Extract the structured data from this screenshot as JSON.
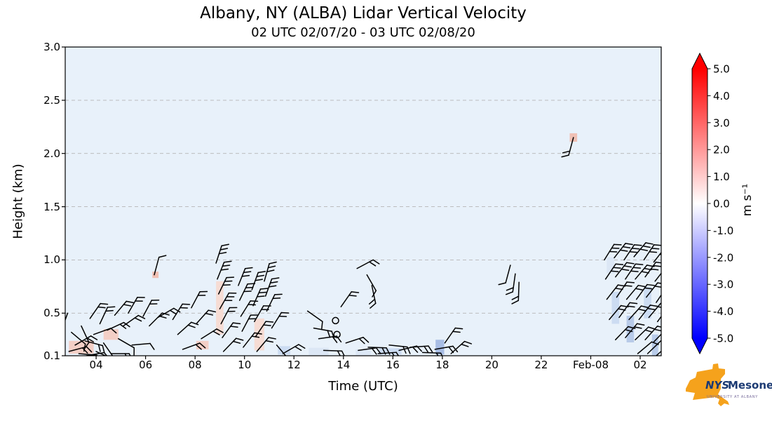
{
  "header": {
    "title": "Albany, NY (ALBA) Lidar Vertical Velocity",
    "subtitle": "02 UTC 02/07/20 - 03 UTC 02/08/20"
  },
  "chart_data": {
    "type": "scatter",
    "subtype": "wind-barb time-height cross-section",
    "title": "Albany, NY (ALBA) Lidar Vertical Velocity",
    "xlabel": "Time (UTC)",
    "ylabel": "Height (km)",
    "xlim_hours": [
      2.75,
      26.85
    ],
    "ylim": [
      0.1,
      3.0
    ],
    "plot_bg": "#e8f1fa",
    "grid": true,
    "gridlines": [
      0.5,
      1.0,
      1.5,
      2.0,
      2.5,
      3.0
    ],
    "x_ticks": [
      {
        "t": 4,
        "label": "04"
      },
      {
        "t": 6,
        "label": "06"
      },
      {
        "t": 8,
        "label": "08"
      },
      {
        "t": 10,
        "label": "10"
      },
      {
        "t": 12,
        "label": "12"
      },
      {
        "t": 14,
        "label": "14"
      },
      {
        "t": 16,
        "label": "16"
      },
      {
        "t": 18,
        "label": "18"
      },
      {
        "t": 20,
        "label": "20"
      },
      {
        "t": 22,
        "label": "22"
      },
      {
        "t": 24,
        "label": "Feb-08"
      },
      {
        "t": 26,
        "label": "02"
      }
    ],
    "y_ticks": [
      {
        "v": 3.0,
        "label": "3.0"
      },
      {
        "v": 2.5,
        "label": "2.5"
      },
      {
        "v": 2.0,
        "label": "2.0"
      },
      {
        "v": 1.5,
        "label": "1.5"
      },
      {
        "v": 1.0,
        "label": "1.0"
      },
      {
        "v": 0.5,
        "label": "0.5"
      },
      {
        "v": 0.1,
        "label": "0.1"
      }
    ],
    "colorbar": {
      "label": "m s⁻¹",
      "min": -5.0,
      "max": 5.0,
      "ticks": [
        "5.0",
        "4.0",
        "3.0",
        "2.0",
        "1.0",
        "0.0",
        "-1.0",
        "-2.0",
        "-3.0",
        "-4.0",
        "-5.0"
      ],
      "color_positive": "#ff0000",
      "color_zero": "#ffffff",
      "color_negative": "#0000ff"
    },
    "wind_barbs": [
      [
        2.85,
        0.5,
        200,
        1
      ],
      [
        2.9,
        0.14,
        75,
        2
      ],
      [
        3.0,
        0.32,
        130,
        1
      ],
      [
        3.15,
        0.2,
        60,
        2
      ],
      [
        3.3,
        0.12,
        95,
        2
      ],
      [
        3.4,
        0.38,
        155,
        1
      ],
      [
        3.55,
        0.24,
        105,
        2
      ],
      [
        3.6,
        0.1,
        80,
        1
      ],
      [
        3.75,
        0.45,
        35,
        2
      ],
      [
        3.9,
        0.3,
        70,
        1
      ],
      [
        4.0,
        0.14,
        115,
        2
      ],
      [
        4.15,
        0.4,
        25,
        2
      ],
      [
        4.3,
        0.22,
        145,
        1
      ],
      [
        4.45,
        0.34,
        65,
        2
      ],
      [
        4.6,
        0.12,
        90,
        2
      ],
      [
        4.75,
        0.48,
        40,
        2
      ],
      [
        4.9,
        0.26,
        120,
        1
      ],
      [
        5.1,
        0.38,
        55,
        2
      ],
      [
        5.3,
        0.5,
        30,
        2
      ],
      [
        5.45,
        0.2,
        85,
        1
      ],
      [
        5.9,
        0.47,
        28,
        2
      ],
      [
        6.15,
        0.38,
        45,
        2
      ],
      [
        6.35,
        0.86,
        15,
        1
      ],
      [
        6.5,
        0.46,
        60,
        2
      ],
      [
        7.1,
        0.44,
        32,
        2
      ],
      [
        7.3,
        0.3,
        48,
        2
      ],
      [
        7.5,
        0.16,
        70,
        2
      ],
      [
        7.85,
        0.55,
        28,
        2
      ],
      [
        8.05,
        0.4,
        42,
        2
      ],
      [
        8.25,
        0.26,
        58,
        2
      ],
      [
        8.85,
        0.97,
        18,
        3
      ],
      [
        8.9,
        0.82,
        22,
        3
      ],
      [
        8.95,
        0.68,
        26,
        3
      ],
      [
        9.0,
        0.54,
        30,
        3
      ],
      [
        9.05,
        0.4,
        28,
        2
      ],
      [
        9.1,
        0.27,
        36,
        2
      ],
      [
        9.15,
        0.14,
        44,
        2
      ],
      [
        9.75,
        0.76,
        22,
        3
      ],
      [
        9.8,
        0.62,
        26,
        3
      ],
      [
        9.85,
        0.47,
        32,
        2
      ],
      [
        9.9,
        0.33,
        28,
        2
      ],
      [
        9.95,
        0.18,
        38,
        2
      ],
      [
        10.3,
        0.72,
        20,
        3
      ],
      [
        10.35,
        0.57,
        24,
        3
      ],
      [
        10.4,
        0.42,
        30,
        2
      ],
      [
        10.45,
        0.28,
        34,
        2
      ],
      [
        10.5,
        0.14,
        40,
        2
      ],
      [
        10.8,
        0.8,
        16,
        3
      ],
      [
        10.85,
        0.66,
        20,
        3
      ],
      [
        10.9,
        0.52,
        26,
        2
      ],
      [
        11.1,
        0.36,
        32,
        2
      ],
      [
        11.3,
        0.2,
        140,
        1
      ],
      [
        11.55,
        0.12,
        60,
        2
      ],
      [
        12.55,
        0.52,
        125,
        1
      ],
      [
        12.8,
        0.36,
        100,
        2
      ],
      [
        13.0,
        0.26,
        82,
        2
      ],
      [
        13.2,
        0.15,
        92,
        2
      ],
      [
        13.9,
        0.56,
        35,
        2
      ],
      [
        14.1,
        0.22,
        72,
        2
      ],
      [
        14.55,
        0.92,
        62,
        2
      ],
      [
        14.95,
        0.86,
        150,
        1
      ],
      [
        15.15,
        0.76,
        168,
        2
      ],
      [
        14.6,
        0.15,
        82,
        2
      ],
      [
        15.0,
        0.18,
        92,
        2
      ],
      [
        15.4,
        0.12,
        86,
        2
      ],
      [
        15.85,
        0.2,
        96,
        2
      ],
      [
        16.25,
        0.15,
        76,
        2
      ],
      [
        16.7,
        0.18,
        86,
        2
      ],
      [
        17.2,
        0.13,
        92,
        2
      ],
      [
        17.7,
        0.16,
        80,
        2
      ],
      [
        18.1,
        0.22,
        35,
        2
      ],
      [
        18.35,
        0.12,
        48,
        2
      ],
      [
        20.75,
        0.95,
        195,
        1
      ],
      [
        20.95,
        0.87,
        188,
        2
      ],
      [
        21.1,
        0.79,
        182,
        2
      ],
      [
        23.3,
        2.15,
        195,
        2
      ],
      [
        24.55,
        1.0,
        32,
        3
      ],
      [
        24.95,
        1.02,
        38,
        3
      ],
      [
        25.35,
        1.0,
        34,
        3
      ],
      [
        25.75,
        1.03,
        40,
        3
      ],
      [
        26.15,
        1.0,
        34,
        3
      ],
      [
        26.55,
        0.98,
        38,
        3
      ],
      [
        24.6,
        0.82,
        34,
        3
      ],
      [
        25.0,
        0.84,
        38,
        3
      ],
      [
        25.4,
        0.82,
        34,
        3
      ],
      [
        25.8,
        0.82,
        40,
        3
      ],
      [
        26.2,
        0.84,
        36,
        3
      ],
      [
        26.6,
        0.8,
        38,
        3
      ],
      [
        24.65,
        0.63,
        38,
        2
      ],
      [
        25.05,
        0.65,
        34,
        2
      ],
      [
        25.45,
        0.63,
        40,
        2
      ],
      [
        25.85,
        0.63,
        36,
        2
      ],
      [
        26.25,
        0.65,
        38,
        2
      ],
      [
        26.65,
        0.6,
        34,
        2
      ],
      [
        24.75,
        0.44,
        40,
        2
      ],
      [
        25.15,
        0.46,
        36,
        2
      ],
      [
        25.55,
        0.44,
        42,
        2
      ],
      [
        25.95,
        0.44,
        38,
        2
      ],
      [
        26.35,
        0.46,
        40,
        2
      ],
      [
        26.7,
        0.42,
        36,
        2
      ],
      [
        25.0,
        0.25,
        44,
        2
      ],
      [
        25.4,
        0.27,
        40,
        2
      ],
      [
        25.8,
        0.25,
        46,
        2
      ],
      [
        26.2,
        0.25,
        42,
        2
      ],
      [
        26.55,
        0.23,
        44,
        2
      ],
      [
        25.9,
        0.12,
        50,
        1
      ],
      [
        26.3,
        0.12,
        46,
        1
      ],
      [
        26.65,
        0.1,
        48,
        1
      ]
    ],
    "calm_markers": [
      [
        13.68,
        0.43
      ],
      [
        13.74,
        0.3
      ]
    ],
    "shading": [
      [
        3.4,
        0.18,
        1.0,
        0.12,
        "#f3cfc6"
      ],
      [
        4.6,
        0.3,
        0.6,
        0.1,
        "#f3cfc6"
      ],
      [
        6.4,
        0.86,
        0.25,
        0.06,
        "#f0c0b4"
      ],
      [
        8.3,
        0.2,
        0.5,
        0.08,
        "#f3cfc6"
      ],
      [
        9.0,
        0.55,
        0.3,
        0.5,
        "#f6dcd4"
      ],
      [
        10.6,
        0.3,
        0.4,
        0.3,
        "#f6dcd4"
      ],
      [
        11.6,
        0.15,
        0.5,
        0.08,
        "#ccdcf2"
      ],
      [
        13.0,
        0.14,
        0.8,
        0.07,
        "#dce7f5"
      ],
      [
        14.8,
        0.13,
        0.6,
        0.06,
        "#dce7f5"
      ],
      [
        15.9,
        0.14,
        0.9,
        0.06,
        "#ccdcf2"
      ],
      [
        17.9,
        0.18,
        0.35,
        0.14,
        "#a8bde4"
      ],
      [
        23.3,
        2.15,
        0.3,
        0.08,
        "#f0c0b4"
      ],
      [
        24.8,
        0.95,
        0.3,
        0.15,
        "#dce7f5"
      ],
      [
        25.0,
        0.55,
        0.3,
        0.3,
        "#ccdcf2"
      ],
      [
        25.6,
        0.35,
        0.3,
        0.25,
        "#b8cbe9"
      ],
      [
        26.3,
        0.6,
        0.3,
        0.3,
        "#ccdcf2"
      ],
      [
        26.6,
        0.2,
        0.25,
        0.2,
        "#b8cbe9"
      ]
    ]
  },
  "logo": {
    "name_part1": "NYS",
    "name_part2": "Mesonet",
    "tagline": "UNIVERSITY AT ALBANY",
    "state_color": "#F5A21C",
    "text_color": "#1b3a73",
    "tagline_color": "#7b6f9e"
  }
}
